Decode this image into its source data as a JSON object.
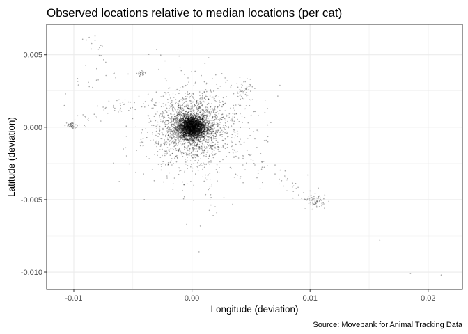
{
  "chart_data": {
    "type": "scatter",
    "title": "Observed locations relative to median locations (per cat)",
    "xlabel": "Longitude (deviation)",
    "ylabel": "Latitude (deviation)",
    "caption": "Source: Movebank for Animal Tracking Data",
    "xlim": [
      -0.0123,
      0.0229
    ],
    "ylim": [
      -0.0112,
      0.0071
    ],
    "x_ticks": [
      -0.01,
      0.0,
      0.01,
      0.02
    ],
    "x_tick_labels": [
      "-0.01",
      "0.00",
      "0.01",
      "0.02"
    ],
    "y_ticks": [
      0.005,
      0.0,
      -0.005,
      -0.01
    ],
    "y_tick_labels": [
      "0.005",
      "0.000",
      "-0.005",
      "-0.010"
    ],
    "grid": true,
    "point_color": "#000000",
    "point_opacity": 0.35,
    "panel_border_color": "#333333",
    "grid_color": "#ebebeb",
    "clusters": [
      {
        "x": 0.0,
        "y": 0.0,
        "count": 2600,
        "sx": 0.0006,
        "sy": 0.0004
      },
      {
        "x": 0.0,
        "y": 0.0,
        "count": 1400,
        "sx": 0.0015,
        "sy": 0.0011
      },
      {
        "x": 0.0005,
        "y": -0.0004,
        "count": 500,
        "sx": 0.0028,
        "sy": 0.0019
      },
      {
        "x": -0.0102,
        "y": 0.0001,
        "count": 45,
        "sx": 0.0002,
        "sy": 0.00012
      },
      {
        "x": -0.0042,
        "y": 0.0037,
        "count": 28,
        "sx": 0.0002,
        "sy": 0.0001
      },
      {
        "x": 0.0105,
        "y": -0.0051,
        "count": 70,
        "sx": 0.0004,
        "sy": 0.0002
      },
      {
        "x": 0.0045,
        "y": 0.0025,
        "count": 40,
        "sx": 0.0004,
        "sy": 0.0005
      }
    ],
    "paths": [
      {
        "from": [
          -0.0102,
          0.0002
        ],
        "to": [
          -0.006,
          0.0015
        ],
        "count": 30,
        "spread": 0.00025
      },
      {
        "from": [
          -0.006,
          0.0015
        ],
        "to": [
          -0.003,
          0.0015
        ],
        "count": 20,
        "spread": 0.0002
      },
      {
        "from": [
          -0.0095,
          0.0035
        ],
        "to": [
          -0.0055,
          0.0032
        ],
        "count": 14,
        "spread": 0.0004
      },
      {
        "from": [
          -0.009,
          0.0062
        ],
        "to": [
          -0.0075,
          0.005
        ],
        "count": 12,
        "spread": 0.0003
      },
      {
        "from": [
          0.0035,
          -0.0015
        ],
        "to": [
          0.0075,
          -0.0033
        ],
        "count": 26,
        "spread": 0.0004
      },
      {
        "from": [
          0.007,
          -0.0033
        ],
        "to": [
          0.01,
          -0.005
        ],
        "count": 22,
        "spread": 0.00035
      },
      {
        "from": [
          0.0005,
          0.0012
        ],
        "to": [
          0.0035,
          0.003
        ],
        "count": 18,
        "spread": 0.0004
      },
      {
        "from": [
          0.0012,
          -0.0035
        ],
        "to": [
          0.002,
          -0.006
        ],
        "count": 10,
        "spread": 0.0003
      }
    ],
    "points": [
      {
        "x": 0.0159,
        "y": -0.0078
      },
      {
        "x": 0.0185,
        "y": -0.0101
      },
      {
        "x": 0.0211,
        "y": -0.0102
      },
      {
        "x": 0.0006,
        "y": -0.0086
      },
      {
        "x": 0.0011,
        "y": 0.0044
      },
      {
        "x": -0.0028,
        "y": 0.004
      },
      {
        "x": -0.0082,
        "y": 0.0063
      },
      {
        "x": -0.0087,
        "y": 0.0062
      },
      {
        "x": -0.0085,
        "y": 0.0054
      },
      {
        "x": -0.0107,
        "y": 0.0023
      },
      {
        "x": -0.0108,
        "y": 0.0015
      },
      {
        "x": -0.0058,
        "y": -0.0015
      },
      {
        "x": 0.0098,
        "y": -0.0033
      },
      {
        "x": 0.0107,
        "y": -0.0042
      },
      {
        "x": 0.01,
        "y": -0.0044
      },
      {
        "x": 0.0018,
        "y": -0.0061
      },
      {
        "x": 0.0021,
        "y": -0.0059
      },
      {
        "x": -0.0009,
        "y": 0.0039
      },
      {
        "x": 0.0003,
        "y": 0.0031
      }
    ]
  }
}
